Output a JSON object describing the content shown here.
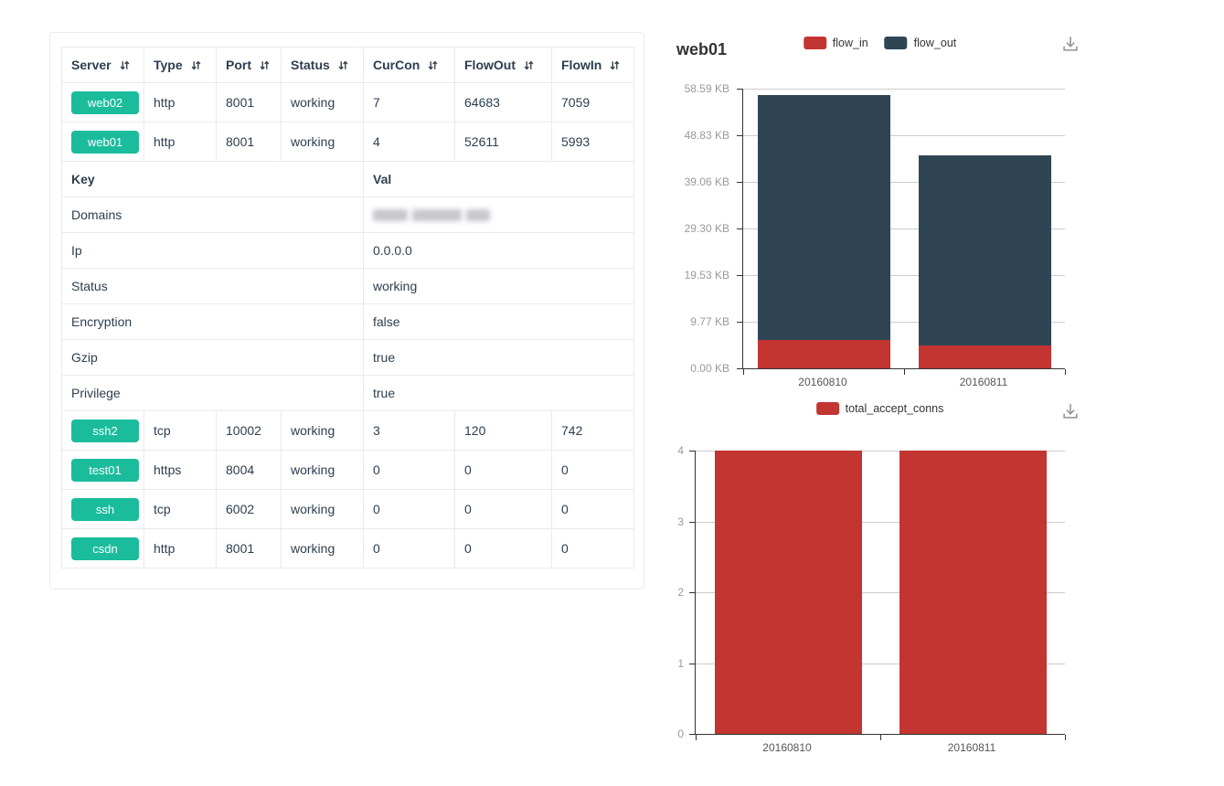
{
  "colors": {
    "badge_green": "#1abc9c",
    "flow_in_red": "#c23531",
    "flow_out_dark": "#2f4554",
    "axis_line": "#333333",
    "grid_line": "#cccccc"
  },
  "icons": {
    "sort": "sort-asc-desc-arrows",
    "download": "download-arrow-tray"
  },
  "table": {
    "columns": [
      {
        "label": "Server",
        "sortable": true
      },
      {
        "label": "Type",
        "sortable": true
      },
      {
        "label": "Port",
        "sortable": true
      },
      {
        "label": "Status",
        "sortable": true
      },
      {
        "label": "CurCon",
        "sortable": true
      },
      {
        "label": "FlowOut",
        "sortable": true
      },
      {
        "label": "FlowIn",
        "sortable": true
      }
    ],
    "top_rows": [
      {
        "server": "web02",
        "type": "http",
        "port": "8001",
        "status": "working",
        "curcon": "7",
        "flowout": "64683",
        "flowin": "7059"
      },
      {
        "server": "web01",
        "type": "http",
        "port": "8001",
        "status": "working",
        "curcon": "4",
        "flowout": "52611",
        "flowin": "5993"
      }
    ],
    "kv_header": {
      "key": "Key",
      "val": "Val"
    },
    "kv_rows": [
      {
        "key": "Domains",
        "val": "",
        "redacted": true
      },
      {
        "key": "Ip",
        "val": "0.0.0.0"
      },
      {
        "key": "Status",
        "val": "working"
      },
      {
        "key": "Encryption",
        "val": "false"
      },
      {
        "key": "Gzip",
        "val": "true"
      },
      {
        "key": "Privilege",
        "val": "true"
      }
    ],
    "bottom_rows": [
      {
        "server": "ssh2",
        "type": "tcp",
        "port": "10002",
        "status": "working",
        "curcon": "3",
        "flowout": "120",
        "flowin": "742"
      },
      {
        "server": "test01",
        "type": "https",
        "port": "8004",
        "status": "working",
        "curcon": "0",
        "flowout": "0",
        "flowin": "0"
      },
      {
        "server": "ssh",
        "type": "tcp",
        "port": "6002",
        "status": "working",
        "curcon": "0",
        "flowout": "0",
        "flowin": "0"
      },
      {
        "server": "csdn",
        "type": "http",
        "port": "8001",
        "status": "working",
        "curcon": "0",
        "flowout": "0",
        "flowin": "0"
      }
    ]
  },
  "chart_data": [
    {
      "type": "bar",
      "stacked": true,
      "title": "web01",
      "categories": [
        "20160810",
        "20160811"
      ],
      "series": [
        {
          "name": "flow_in",
          "color": "#c23531",
          "values": [
            5.85,
            4.7
          ]
        },
        {
          "name": "flow_out",
          "color": "#2f4554",
          "values": [
            51.4,
            39.9
          ]
        }
      ],
      "unit": "KB",
      "y_ticks": [
        "0.00 KB",
        "9.77 KB",
        "19.53 KB",
        "29.30 KB",
        "39.06 KB",
        "48.83 KB",
        "58.59 KB"
      ],
      "y_max": 58.59,
      "legend": [
        "flow_in",
        "flow_out"
      ],
      "legend_position": "top-center",
      "grid": true
    },
    {
      "type": "bar",
      "stacked": false,
      "title": "",
      "categories": [
        "20160810",
        "20160811"
      ],
      "series": [
        {
          "name": "total_accept_conns",
          "color": "#c23531",
          "values": [
            4,
            4
          ]
        }
      ],
      "unit": "",
      "y_ticks": [
        "0",
        "1",
        "2",
        "3",
        "4"
      ],
      "y_max": 4,
      "legend": [
        "total_accept_conns"
      ],
      "legend_position": "top-center",
      "grid": true
    }
  ]
}
